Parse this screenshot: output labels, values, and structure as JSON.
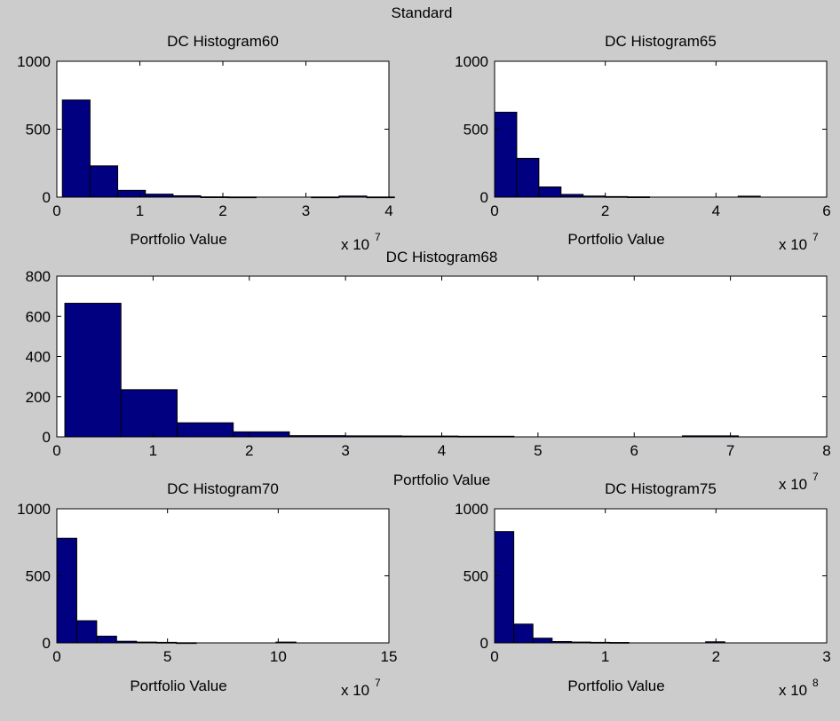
{
  "figure_title": "Standard",
  "colors": {
    "background": "#cccccc",
    "axes_background": "#ffffff",
    "bar_fill": "#000080",
    "bar_edge": "#000000"
  },
  "chart_data": [
    {
      "type": "bar",
      "id": "h60",
      "title": "DC Histogram60",
      "xlabel": "Portfolio Value",
      "x_exponent_base": "x 10",
      "x_exponent": "7",
      "xlim": [
        0,
        4
      ],
      "ylim": [
        0,
        1000
      ],
      "xticks": [
        0,
        1,
        2,
        3,
        4
      ],
      "yticks": [
        0,
        500,
        1000
      ],
      "bin_width": 0.3333,
      "x_start": 0.0667,
      "values": [
        715,
        230,
        50,
        22,
        10,
        2,
        1,
        0,
        0,
        1,
        8,
        1
      ]
    },
    {
      "type": "bar",
      "id": "h65",
      "title": "DC Histogram65",
      "xlabel": "Portfolio Value",
      "x_exponent_base": "x 10",
      "x_exponent": "7",
      "xlim": [
        0,
        6
      ],
      "ylim": [
        0,
        1000
      ],
      "xticks": [
        0,
        2,
        4,
        6
      ],
      "yticks": [
        0,
        500,
        1000
      ],
      "bin_width": 0.4,
      "x_start": 0.0,
      "values": [
        625,
        285,
        75,
        20,
        8,
        4,
        2,
        0,
        0,
        0,
        0,
        7
      ]
    },
    {
      "type": "bar",
      "id": "h68",
      "title": "DC Histogram68",
      "xlabel": "Portfolio Value",
      "x_exponent_base": "x 10",
      "x_exponent": "7",
      "xlim": [
        0,
        8
      ],
      "ylim": [
        0,
        800
      ],
      "xticks": [
        0,
        1,
        2,
        3,
        4,
        5,
        6,
        7,
        8
      ],
      "yticks": [
        0,
        200,
        400,
        600,
        800
      ],
      "bin_width": 0.5833,
      "x_start": 0.0833,
      "values": [
        665,
        235,
        70,
        25,
        6,
        5,
        4,
        3,
        0,
        0,
        0,
        5
      ]
    },
    {
      "type": "bar",
      "id": "h70",
      "title": "DC Histogram70",
      "xlabel": "Portfolio Value",
      "x_exponent_base": "x 10",
      "x_exponent": "7",
      "xlim": [
        0,
        15
      ],
      "ylim": [
        0,
        1000
      ],
      "xticks": [
        0,
        5,
        10,
        15
      ],
      "yticks": [
        0,
        500,
        1000
      ],
      "bin_width": 0.9,
      "x_start": 0.0,
      "values": [
        780,
        165,
        50,
        12,
        6,
        4,
        1,
        0,
        0,
        0,
        0,
        6
      ]
    },
    {
      "type": "bar",
      "id": "h75",
      "title": "DC Histogram75",
      "xlabel": "Portfolio Value",
      "x_exponent_base": "x 10",
      "x_exponent": "8",
      "xlim": [
        0,
        3
      ],
      "ylim": [
        0,
        1000
      ],
      "xticks": [
        0,
        1,
        2,
        3
      ],
      "yticks": [
        0,
        500,
        1000
      ],
      "bin_width": 0.1733,
      "x_start": 0.0,
      "values": [
        830,
        140,
        35,
        10,
        6,
        4,
        3,
        0,
        0,
        0,
        0,
        8
      ]
    }
  ]
}
